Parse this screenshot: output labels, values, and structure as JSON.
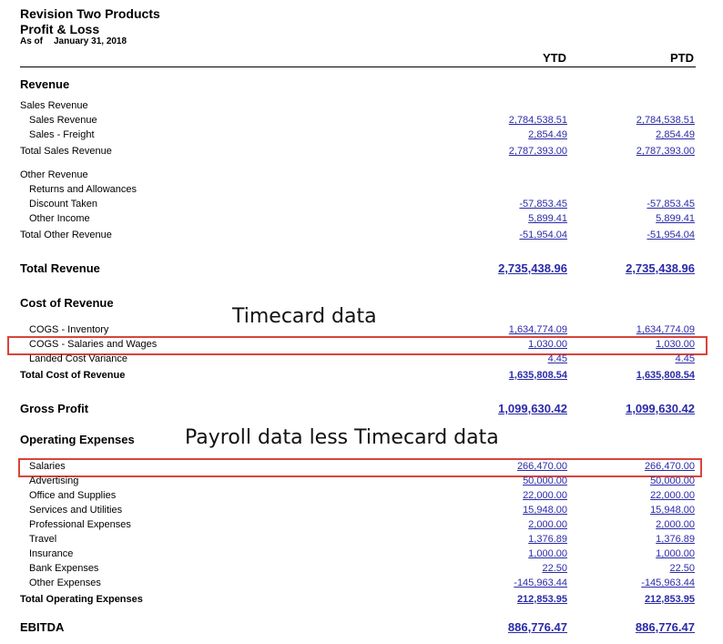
{
  "header": {
    "company": "Revision Two Products",
    "report": "Profit & Loss",
    "as_of_label": "As of",
    "as_of_date": "January 31, 2018",
    "col_ytd": "YTD",
    "col_ptd": "PTD"
  },
  "annotations": {
    "timecard": "Timecard data",
    "payroll": "Payroll data less Timecard data"
  },
  "revenue": {
    "title": "Revenue",
    "sales_group": "Sales Revenue",
    "sales_rows": [
      {
        "label": "Sales Revenue",
        "ytd": "2,784,538.51",
        "ptd": "2,784,538.51"
      },
      {
        "label": "Sales - Freight",
        "ytd": "2,854.49",
        "ptd": "2,854.49"
      }
    ],
    "total_sales": {
      "label": "Total Sales Revenue",
      "ytd": "2,787,393.00",
      "ptd": "2,787,393.00"
    },
    "other_group": "Other Revenue",
    "other_rows": [
      {
        "label": "Returns and Allowances",
        "ytd": "",
        "ptd": ""
      },
      {
        "label": "Discount Taken",
        "ytd": "-57,853.45",
        "ptd": "-57,853.45"
      },
      {
        "label": "Other Income",
        "ytd": "5,899.41",
        "ptd": "5,899.41"
      }
    ],
    "total_other": {
      "label": "Total Other Revenue",
      "ytd": "-51,954.04",
      "ptd": "-51,954.04"
    },
    "total": {
      "label": "Total Revenue",
      "ytd": "2,735,438.96",
      "ptd": "2,735,438.96"
    }
  },
  "cost": {
    "title": "Cost of Revenue",
    "rows": [
      {
        "label": "COGS - Inventory",
        "ytd": "1,634,774.09",
        "ptd": "1,634,774.09"
      },
      {
        "label": "COGS - Salaries and Wages",
        "ytd": "1,030.00",
        "ptd": "1,030.00"
      },
      {
        "label": "Landed Cost Variance",
        "ytd": "4.45",
        "ptd": "4.45"
      }
    ],
    "total": {
      "label": "Total Cost of Revenue",
      "ytd": "1,635,808.54",
      "ptd": "1,635,808.54"
    }
  },
  "gross": {
    "label": "Gross Profit",
    "ytd": "1,099,630.42",
    "ptd": "1,099,630.42"
  },
  "opex": {
    "title": "Operating Expenses",
    "rows": [
      {
        "label": "Salaries",
        "ytd": "266,470.00",
        "ptd": "266,470.00"
      },
      {
        "label": "Advertising",
        "ytd": "50,000.00",
        "ptd": "50,000.00"
      },
      {
        "label": "Office and Supplies",
        "ytd": "22,000.00",
        "ptd": "22,000.00"
      },
      {
        "label": "Services and Utilities",
        "ytd": "15,948.00",
        "ptd": "15,948.00"
      },
      {
        "label": "Professional Expenses",
        "ytd": "2,000.00",
        "ptd": "2,000.00"
      },
      {
        "label": "Travel",
        "ytd": "1,376.89",
        "ptd": "1,376.89"
      },
      {
        "label": "Insurance",
        "ytd": "1,000.00",
        "ptd": "1,000.00"
      },
      {
        "label": "Bank Expenses",
        "ytd": "22.50",
        "ptd": "22.50"
      },
      {
        "label": "Other Expenses",
        "ytd": "-145,963.44",
        "ptd": "-145,963.44"
      }
    ],
    "total": {
      "label": "Total Operating Expenses",
      "ytd": "212,853.95",
      "ptd": "212,853.95"
    }
  },
  "ebitda": {
    "label": "EBITDA",
    "ytd": "886,776.47",
    "ptd": "886,776.47"
  }
}
